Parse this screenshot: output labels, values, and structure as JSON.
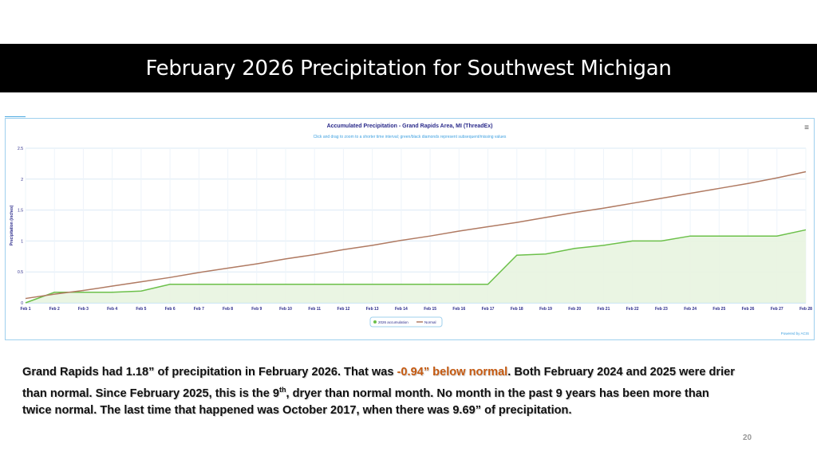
{
  "slide": {
    "title": "February 2026 Precipitation for Southwest Michigan",
    "page_number": "20",
    "paragraph": {
      "p1": "Grand Rapids had 1.18” of precipitation in February 2026. That was ",
      "highlight": "-0.94” below normal",
      "p2": ".  Both February 2024 and 2025 were drier than normal. Since February 2025, this is the 9",
      "sup": "th",
      "p3": ", dryer than normal month. No month in the past 9 years has been more than twice normal.  The last time that happened was October 2017, when there was 9.69” of precipitation."
    }
  },
  "chart_data": {
    "type": "line",
    "title": "Accumulated Precipitation - Grand Rapids Area, MI (ThreadEx)",
    "subtitle": "Click and drag to zoom to a shorter time interval; green/black diamonds represent subsequent/missing values",
    "ylabel": "Precipitation (inches)",
    "xlabel": "",
    "ylim": [
      0,
      2.5
    ],
    "yticks": [
      "0",
      "0.5",
      "1",
      "1.5",
      "2",
      "2.5"
    ],
    "categories": [
      "Feb 1",
      "Feb 2",
      "Feb 3",
      "Feb 4",
      "Feb 5",
      "Feb 6",
      "Feb 7",
      "Feb 8",
      "Feb 9",
      "Feb 10",
      "Feb 11",
      "Feb 12",
      "Feb 13",
      "Feb 14",
      "Feb 15",
      "Feb 16",
      "Feb 17",
      "Feb 18",
      "Feb 19",
      "Feb 20",
      "Feb 21",
      "Feb 22",
      "Feb 23",
      "Feb 24",
      "Feb 25",
      "Feb 26",
      "Feb 27",
      "Feb 28"
    ],
    "series": [
      {
        "name": "2026 accumulation",
        "color": "#6cc04a",
        "fill": "#e8f4e0",
        "values": [
          0,
          0.17,
          0.17,
          0.17,
          0.19,
          0.3,
          0.3,
          0.3,
          0.3,
          0.3,
          0.3,
          0.3,
          0.3,
          0.3,
          0.3,
          0.3,
          0.3,
          0.77,
          0.79,
          0.88,
          0.93,
          1.0,
          1.0,
          1.08,
          1.08,
          1.08,
          1.08,
          1.18
        ]
      },
      {
        "name": "Normal",
        "color": "#b07a62",
        "values": [
          0.07,
          0.14,
          0.2,
          0.27,
          0.34,
          0.41,
          0.49,
          0.56,
          0.63,
          0.71,
          0.78,
          0.86,
          0.93,
          1.01,
          1.08,
          1.16,
          1.23,
          1.3,
          1.38,
          1.46,
          1.53,
          1.61,
          1.69,
          1.77,
          1.85,
          1.93,
          2.02,
          2.12
        ]
      }
    ],
    "legend_position": "bottom-center",
    "grid": true,
    "credit": "Powered by ACIS",
    "menu_icon": "hamburger-icon"
  }
}
